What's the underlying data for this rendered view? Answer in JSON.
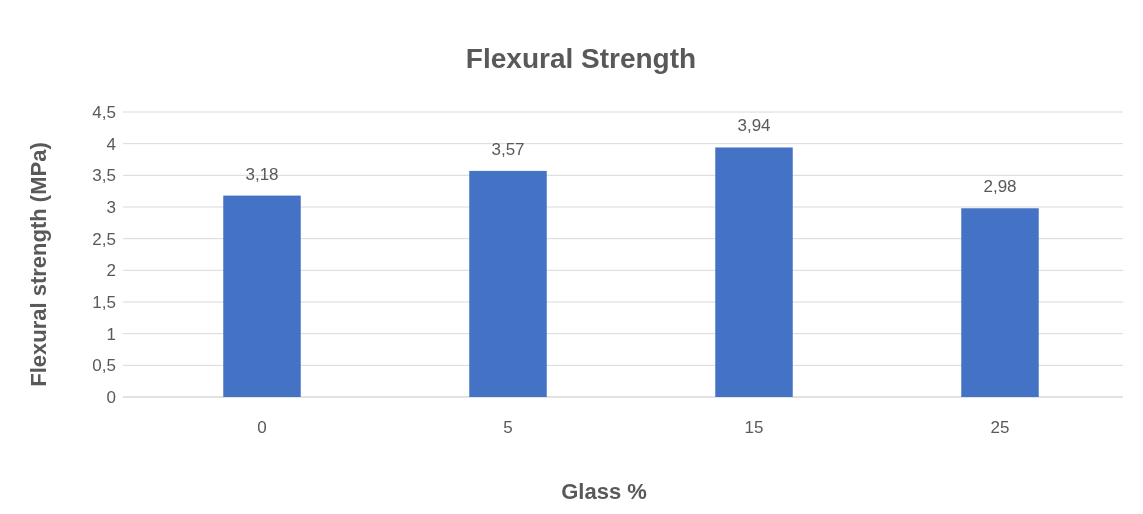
{
  "chart_data": {
    "type": "bar",
    "title": "Flexural Strength",
    "xlabel": "Glass %",
    "ylabel": "Flexural strength (MPa)",
    "categories": [
      "0",
      "5",
      "15",
      "25"
    ],
    "values": [
      3.18,
      3.57,
      3.94,
      2.98
    ],
    "value_labels": [
      "3,18",
      "3,57",
      "3,94",
      "2,98"
    ],
    "color": "#4472c4",
    "ylim": [
      0,
      4.5
    ],
    "yticks": [
      0,
      {
        "value": 0.5,
        "label": "0,5"
      },
      1,
      {
        "value": 1.5,
        "label": "1,5"
      },
      2,
      {
        "value": 2.5,
        "label": "2,5"
      },
      3,
      {
        "value": 3.5,
        "label": "3,5"
      },
      4,
      {
        "value": 4.5,
        "label": "4,5"
      }
    ],
    "grid": "y"
  }
}
